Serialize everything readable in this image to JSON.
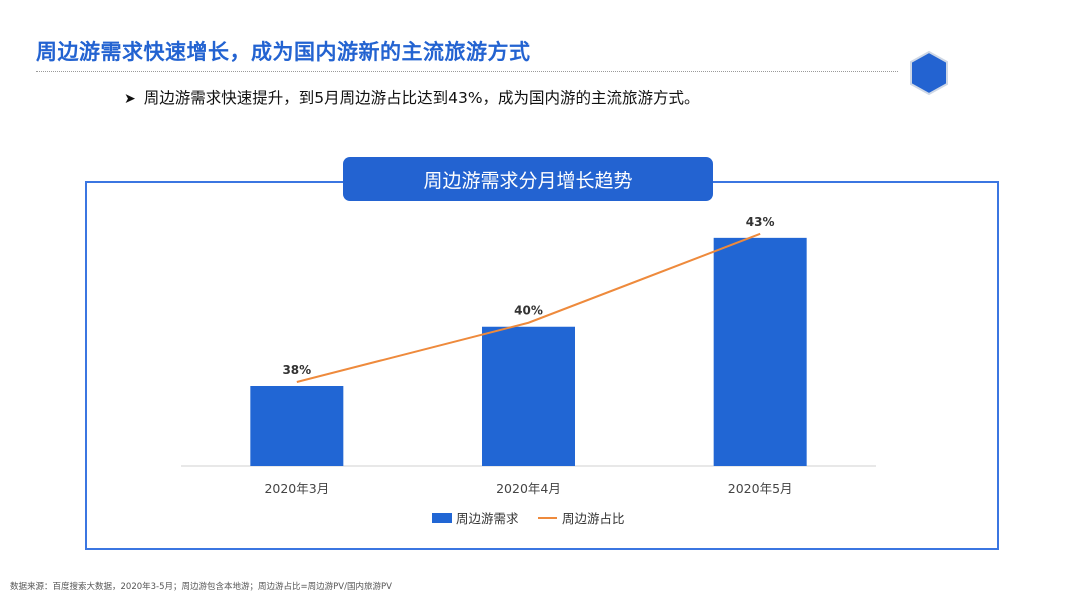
{
  "header": {
    "title": "周边游需求快速增长，成为国内游新的主流旅游方式",
    "bullet_text": "周边游需求快速提升，到5月周边游占比达到43%，成为国内游的主流旅游方式。",
    "bullet_icon": "arrow-bullet-icon",
    "logo_icon": "hexagon-logo-icon"
  },
  "colors": {
    "brand": "#2363d1",
    "bar": "#2166d4",
    "line": "#ee8a3c",
    "frame": "#3b76e1"
  },
  "chart_data": {
    "type": "bar",
    "title": "周边游需求分月增长趋势",
    "categories": [
      "2020年3月",
      "2020年4月",
      "2020年5月"
    ],
    "series": [
      {
        "name": "周边游需求",
        "type": "bar",
        "values": [
          38,
          40,
          43
        ]
      },
      {
        "name": "周边游占比",
        "type": "line",
        "values": [
          38,
          40,
          43
        ],
        "labels": [
          "38%",
          "40%",
          "43%"
        ]
      }
    ],
    "ylim": [
      35.3,
      43.4
    ],
    "grid": false,
    "legend": "bottom"
  },
  "footer": {
    "source": "数据来源：百度搜索大数据，2020年3-5月；周边游包含本地游；周边游占比=周边游PV/国内旅游PV"
  }
}
